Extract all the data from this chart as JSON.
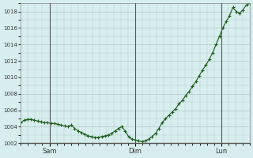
{
  "background_color": "#d8eeee",
  "plot_bg_color": "#d8eeee",
  "grid_color": "#b0c8c8",
  "line_color": "#1a5c1a",
  "marker_color": "#1a5c1a",
  "ylim": [
    1002,
    1019
  ],
  "yticks": [
    1002,
    1004,
    1006,
    1008,
    1010,
    1012,
    1014,
    1016,
    1018
  ],
  "day_labels": [
    "Sam",
    "Dim",
    "Lun"
  ],
  "day_positions": [
    0.125,
    0.5,
    0.875
  ],
  "vline_positions": [
    0.125,
    0.5,
    0.875
  ],
  "y_values": [
    1004.5,
    1004.8,
    1004.9,
    1004.9,
    1004.8,
    1004.7,
    1004.6,
    1004.5,
    1004.5,
    1004.4,
    1004.4,
    1004.3,
    1004.2,
    1004.1,
    1004.0,
    1004.2,
    1003.8,
    1003.5,
    1003.3,
    1003.1,
    1002.9,
    1002.8,
    1002.7,
    1002.7,
    1002.8,
    1002.9,
    1003.0,
    1003.2,
    1003.5,
    1003.8,
    1004.0,
    1003.5,
    1002.8,
    1002.5,
    1002.4,
    1002.3,
    1002.2,
    1002.3,
    1002.5,
    1002.8,
    1003.2,
    1003.8,
    1004.5,
    1005.0,
    1005.4,
    1005.8,
    1006.2,
    1006.8,
    1007.2,
    1007.8,
    1008.3,
    1008.9,
    1009.5,
    1010.2,
    1010.9,
    1011.5,
    1012.2,
    1013.0,
    1014.0,
    1015.0,
    1016.0,
    1016.8,
    1017.5,
    1018.5,
    1018.0,
    1017.8,
    1018.2,
    1018.8,
    1019.0
  ]
}
